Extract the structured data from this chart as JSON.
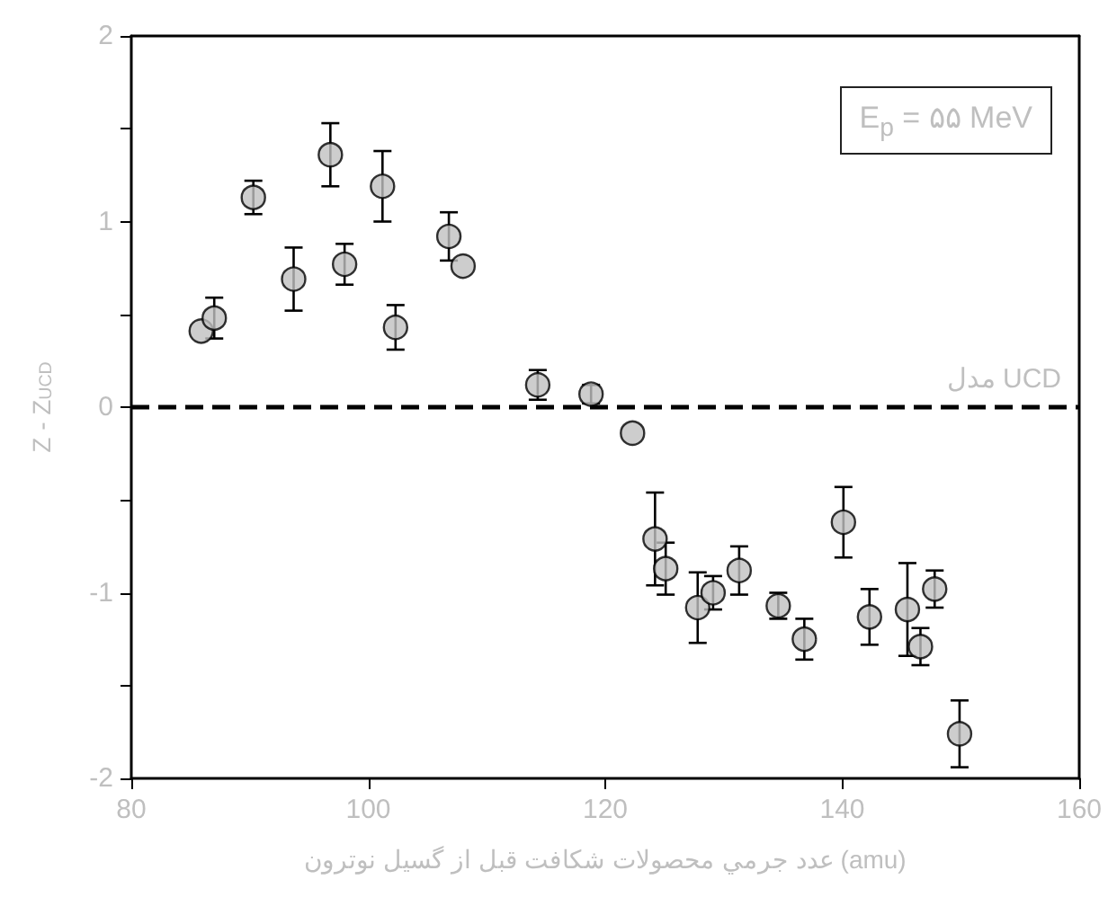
{
  "chart_data": {
    "type": "scatter",
    "xlabel": "عدد جرمي محصولات شكافت قبل از گسيل نوترون (amu)",
    "ylabel": "Z - Z$_{UCD}$",
    "annotations": [
      "E$_{p}$ = ۵۵ MeV"
    ],
    "x": [
      85.9,
      87.0,
      90.3,
      93.7,
      96.8,
      98.0,
      101.2,
      102.3,
      106.8,
      108.0,
      114.3,
      118.8,
      122.3,
      124.2,
      125.1,
      127.8,
      129.1,
      131.3,
      134.6,
      136.8,
      140.1,
      142.3,
      145.5,
      146.6,
      147.8,
      149.9
    ],
    "series": [
      {
        "color": "#c0c0c0",
        "values": [
          0.41,
          0.48,
          1.13,
          0.69,
          1.36,
          0.77,
          1.19,
          0.43,
          0.92,
          0.76,
          0.12,
          0.07,
          -0.14,
          -0.71,
          -0.87,
          -1.08,
          -1.0,
          -0.88,
          -1.07,
          -1.25,
          -0.62,
          -1.13,
          -1.09,
          -1.29,
          -0.98,
          -1.76
        ],
        "errors": [
          null,
          0.11,
          0.09,
          0.17,
          0.17,
          0.11,
          0.19,
          0.12,
          0.13,
          null,
          0.08,
          0.05,
          null,
          0.25,
          0.14,
          0.19,
          0.09,
          0.13,
          0.07,
          0.11,
          0.19,
          0.15,
          0.25,
          0.1,
          0.1,
          0.18
        ]
      }
    ],
    "xlim": [
      80,
      160
    ],
    "xticks": [
      80,
      100,
      120,
      140,
      160
    ],
    "ylim": [
      -2,
      2
    ],
    "yticks": [
      -2,
      {
        "value": -1.5,
        "label": null
      },
      -1,
      {
        "value": -0.5,
        "label": null
      },
      0,
      {
        "value": 0.5,
        "label": null
      },
      1,
      {
        "value": 1.5,
        "label": null
      },
      2
    ],
    "ref_lines": [
      {
        "axis": "y",
        "value": 0,
        "label": "مدل UCD",
        "color": "#000000",
        "line_style": "dashed"
      }
    ],
    "marker": "circle",
    "grid": false
  }
}
